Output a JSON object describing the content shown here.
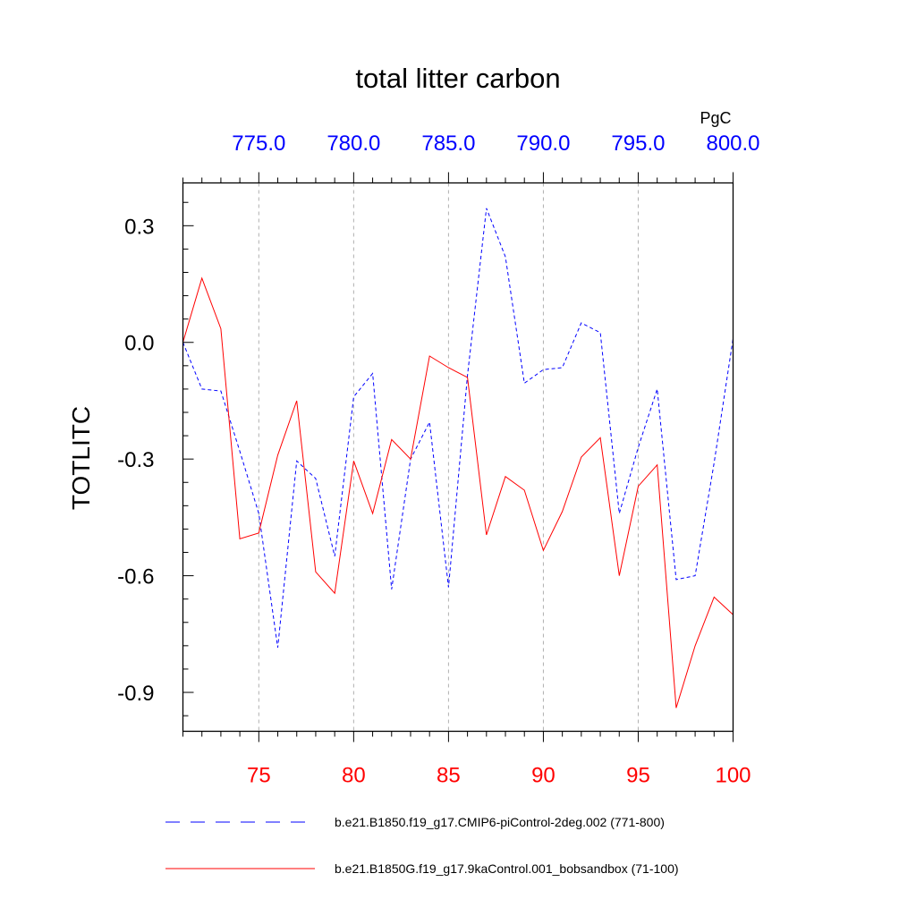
{
  "chart_data": {
    "type": "line",
    "title": "total litter carbon",
    "ylabel": "TOTLITC",
    "top_axis_unit": "PgC",
    "xlim_bottom": [
      71,
      100
    ],
    "xlim_top": [
      771,
      800
    ],
    "ylim": [
      -1.0,
      0.41
    ],
    "bottom_ticks": [
      "75",
      "80",
      "85",
      "90",
      "95",
      "100"
    ],
    "bottom_tick_values": [
      75,
      80,
      85,
      90,
      95,
      100
    ],
    "top_ticks": [
      "775.0",
      "780.0",
      "785.0",
      "790.0",
      "795.0",
      "800.0"
    ],
    "top_tick_values": [
      775,
      780,
      785,
      790,
      795,
      800
    ],
    "y_ticks": [
      "0.3",
      "0.0",
      "-0.3",
      "-0.6",
      "-0.9"
    ],
    "y_tick_values": [
      0.3,
      0.0,
      -0.3,
      -0.6,
      -0.9
    ],
    "grid": "vertical dashed at major ticks",
    "colors": {
      "top_axis": "#0000ff",
      "bottom_axis": "#ff0000"
    },
    "series": [
      {
        "name": "b.e21.B1850.f19_g17.CMIP6-piControl-2deg.002 (771-800)",
        "color": "#0000ff",
        "style": "dashed",
        "x": [
          771,
          772,
          773,
          774,
          775,
          776,
          777,
          778,
          779,
          780,
          781,
          782,
          783,
          784,
          785,
          786,
          787,
          788,
          789,
          790,
          791,
          792,
          793,
          794,
          795,
          796,
          797,
          798,
          799,
          800
        ],
        "values": [
          0.0,
          -0.12,
          -0.125,
          -0.28,
          -0.44,
          -0.785,
          -0.305,
          -0.35,
          -0.55,
          -0.14,
          -0.08,
          -0.635,
          -0.3,
          -0.205,
          -0.63,
          -0.085,
          0.345,
          0.22,
          -0.105,
          -0.07,
          -0.065,
          0.05,
          0.025,
          -0.44,
          -0.27,
          -0.12,
          -0.61,
          -0.6,
          -0.31,
          0.01
        ]
      },
      {
        "name": "b.e21.B1850G.f19_g17.9kaControl.001_bobsandbox (71-100)",
        "color": "#ff0000",
        "style": "solid",
        "x": [
          71,
          72,
          73,
          74,
          75,
          76,
          77,
          78,
          79,
          80,
          81,
          82,
          83,
          84,
          85,
          86,
          87,
          88,
          89,
          90,
          91,
          92,
          93,
          94,
          95,
          96,
          97,
          98,
          99,
          100
        ],
        "values": [
          0.0,
          0.165,
          0.035,
          -0.505,
          -0.49,
          -0.29,
          -0.15,
          -0.59,
          -0.645,
          -0.305,
          -0.44,
          -0.25,
          -0.3,
          -0.035,
          -0.065,
          -0.09,
          -0.495,
          -0.345,
          -0.38,
          -0.535,
          -0.435,
          -0.295,
          -0.245,
          -0.6,
          -0.37,
          -0.315,
          -0.94,
          -0.78,
          -0.655,
          -0.7
        ]
      }
    ]
  }
}
